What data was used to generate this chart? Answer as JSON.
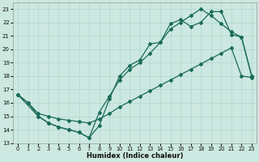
{
  "xlabel": "Humidex (Indice chaleur)",
  "xlim": [
    -0.5,
    23.5
  ],
  "ylim": [
    13,
    23.5
  ],
  "yticks": [
    13,
    14,
    15,
    16,
    17,
    18,
    19,
    20,
    21,
    22,
    23
  ],
  "xticks": [
    0,
    1,
    2,
    3,
    4,
    5,
    6,
    7,
    8,
    9,
    10,
    11,
    12,
    13,
    14,
    15,
    16,
    17,
    18,
    19,
    20,
    21,
    22,
    23
  ],
  "bg_color": "#cce8e0",
  "grid_color": "#afd8ce",
  "line_color": "#1a6b5a",
  "line1_x": [
    0,
    1,
    2,
    3,
    4,
    5,
    6,
    7,
    8,
    9,
    10,
    11,
    12,
    13,
    14,
    15,
    16,
    17,
    18,
    19,
    20,
    21,
    22,
    23
  ],
  "line1_y": [
    16.6,
    16.0,
    15.0,
    14.5,
    14.2,
    14.0,
    13.8,
    13.4,
    14.3,
    16.3,
    18.0,
    18.8,
    19.2,
    20.4,
    20.5,
    21.9,
    22.2,
    21.7,
    22.0,
    22.8,
    22.8,
    21.1,
    20.9,
    18.0
  ],
  "line2_x": [
    0,
    1,
    2,
    3,
    4,
    5,
    6,
    7,
    8,
    9,
    10,
    11,
    12,
    13,
    14,
    15,
    16,
    17,
    18,
    19,
    20,
    21,
    22,
    23
  ],
  "line2_y": [
    16.6,
    16.0,
    15.2,
    15.0,
    14.8,
    14.7,
    14.6,
    14.5,
    14.8,
    15.2,
    15.7,
    16.1,
    16.5,
    16.9,
    17.3,
    17.7,
    18.1,
    18.5,
    18.9,
    19.3,
    19.7,
    20.1,
    18.0,
    17.9
  ],
  "line3_x": [
    0,
    2,
    3,
    4,
    5,
    6,
    7,
    8,
    9,
    10,
    11,
    12,
    13,
    14,
    15,
    16,
    17,
    18,
    19,
    20,
    21,
    22,
    23
  ],
  "line3_y": [
    16.6,
    15.0,
    14.5,
    14.2,
    14.0,
    13.8,
    13.4,
    15.3,
    16.5,
    17.7,
    18.5,
    19.0,
    19.7,
    20.5,
    21.5,
    22.0,
    22.5,
    23.0,
    22.5,
    21.9,
    21.3,
    20.9,
    18.0
  ]
}
